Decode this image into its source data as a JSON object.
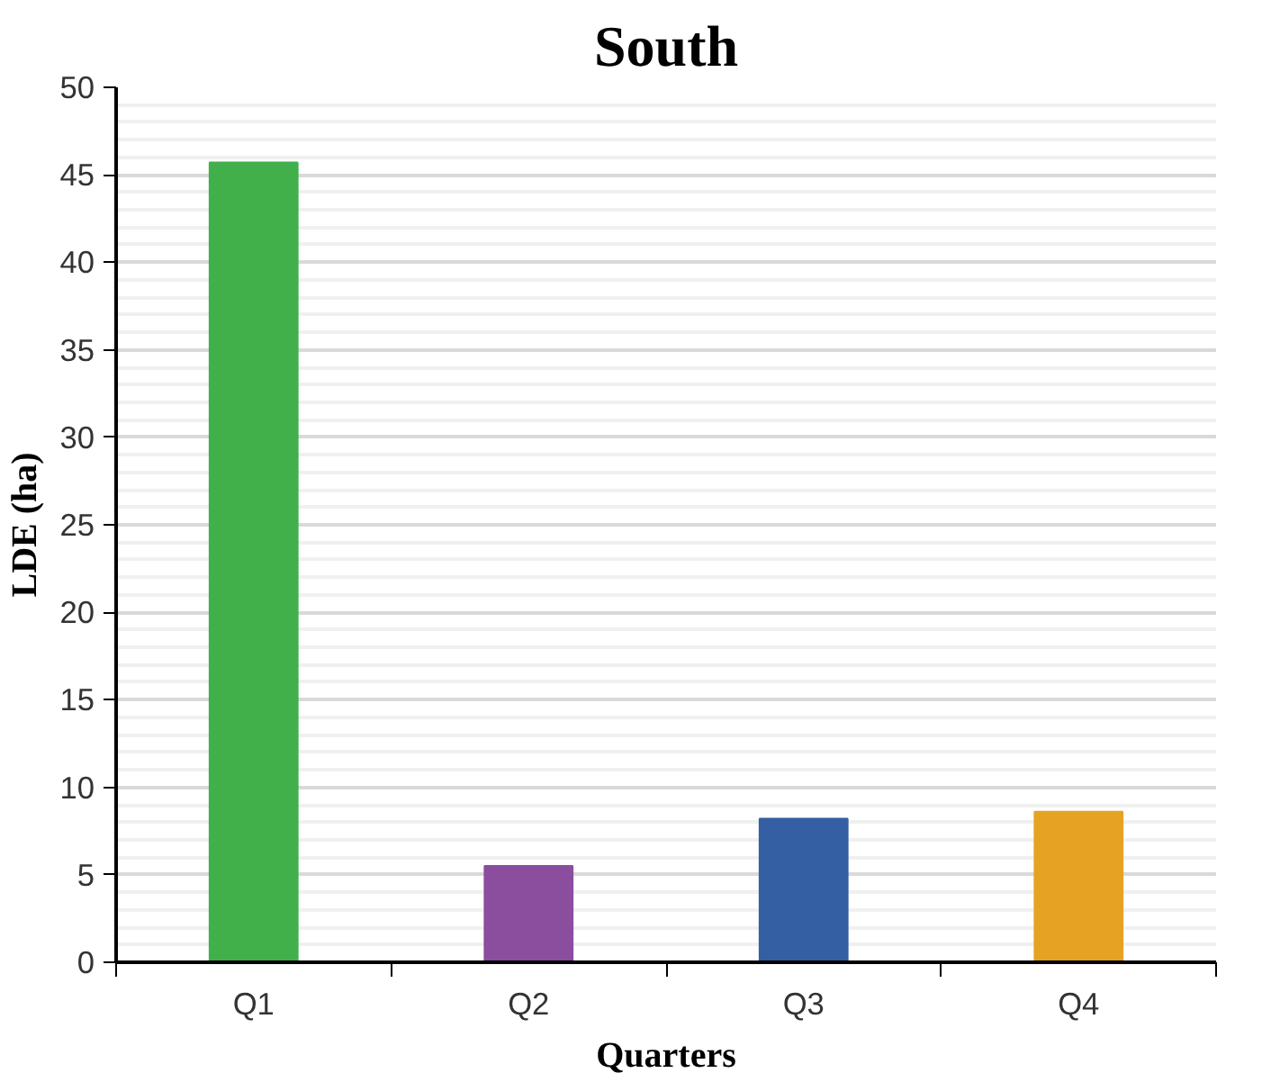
{
  "chart_data": {
    "type": "bar",
    "title": "South",
    "xlabel": "Quarters",
    "ylabel": "LDE (ha)",
    "categories": [
      "Q1",
      "Q2",
      "Q3",
      "Q4"
    ],
    "values": [
      45.7,
      5.5,
      8.2,
      8.6
    ],
    "colors": [
      "#41b04a",
      "#8b4d9e",
      "#345fa3",
      "#e6a223"
    ],
    "ylim": [
      0,
      50
    ],
    "yticks": [
      0,
      5,
      10,
      15,
      20,
      25,
      30,
      35,
      40,
      45,
      50
    ],
    "grid": "y"
  }
}
